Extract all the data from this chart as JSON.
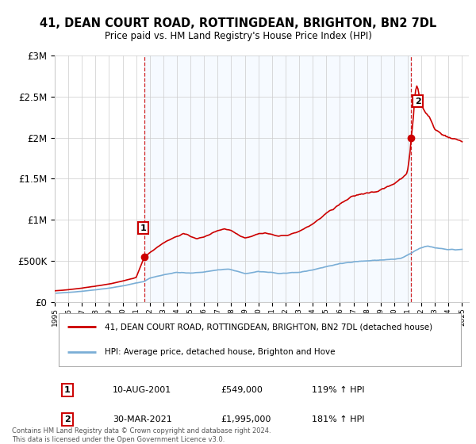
{
  "title": "41, DEAN COURT ROAD, ROTTINGDEAN, BRIGHTON, BN2 7DL",
  "subtitle": "Price paid vs. HM Land Registry's House Price Index (HPI)",
  "legend_line1": "41, DEAN COURT ROAD, ROTTINGDEAN, BRIGHTON, BN2 7DL (detached house)",
  "legend_line2": "HPI: Average price, detached house, Brighton and Hove",
  "sale1_date": "10-AUG-2001",
  "sale1_price": "£549,000",
  "sale1_hpi": "119% ↑ HPI",
  "sale2_date": "30-MAR-2021",
  "sale2_price": "£1,995,000",
  "sale2_hpi": "181% ↑ HPI",
  "footnote": "Contains HM Land Registry data © Crown copyright and database right 2024.\nThis data is licensed under the Open Government Licence v3.0.",
  "sale1_x": 2001.6,
  "sale1_y": 549000,
  "sale2_x": 2021.25,
  "sale2_y": 1995000,
  "red_color": "#cc0000",
  "blue_color": "#7aaed6",
  "shade_color": "#ddeeff",
  "background_color": "#ffffff",
  "grid_color": "#cccccc",
  "ylim": [
    0,
    3000000
  ],
  "xlim": [
    1995.0,
    2025.5
  ]
}
